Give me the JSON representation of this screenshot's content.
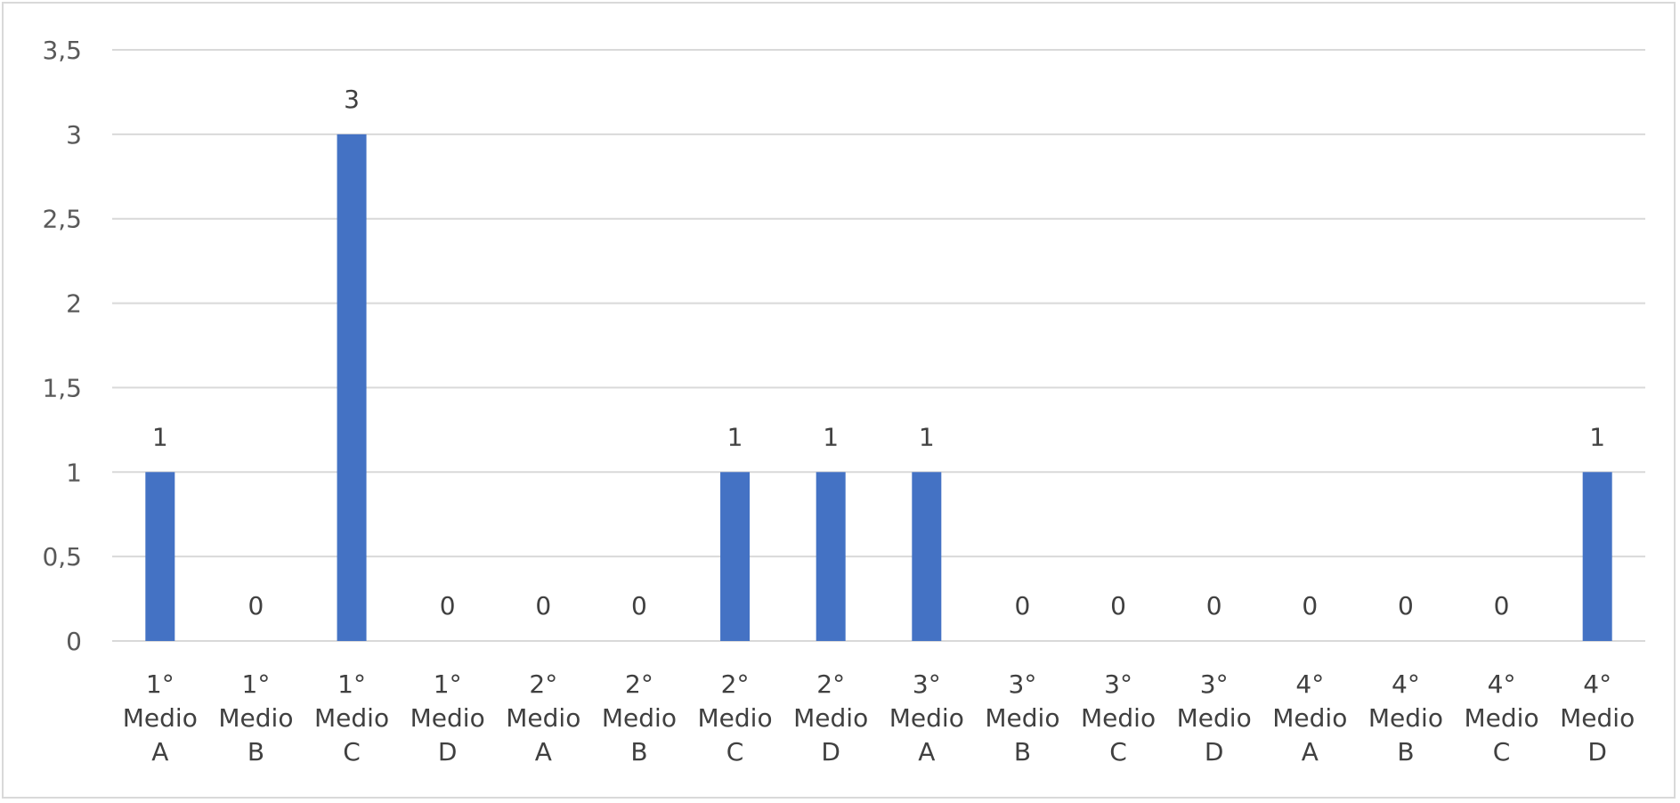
{
  "chart_data": {
    "type": "bar",
    "categories": [
      [
        "1°",
        "Medio",
        "A"
      ],
      [
        "1°",
        "Medio",
        "B"
      ],
      [
        "1°",
        "Medio",
        "C"
      ],
      [
        "1°",
        "Medio",
        "D"
      ],
      [
        "2°",
        "Medio",
        "A"
      ],
      [
        "2°",
        "Medio",
        "B"
      ],
      [
        "2°",
        "Medio",
        "C"
      ],
      [
        "2°",
        "Medio",
        "D"
      ],
      [
        "3°",
        "Medio",
        "A"
      ],
      [
        "3°",
        "Medio",
        "B"
      ],
      [
        "3°",
        "Medio",
        "C"
      ],
      [
        "3°",
        "Medio",
        "D"
      ],
      [
        "4°",
        "Medio",
        "A"
      ],
      [
        "4°",
        "Medio",
        "B"
      ],
      [
        "4°",
        "Medio",
        "C"
      ],
      [
        "4°",
        "Medio",
        "D"
      ]
    ],
    "values": [
      1,
      0,
      3,
      0,
      0,
      0,
      1,
      1,
      1,
      0,
      0,
      0,
      0,
      0,
      0,
      1
    ],
    "data_labels": [
      "1",
      "0",
      "3",
      "0",
      "0",
      "0",
      "1",
      "1",
      "1",
      "0",
      "0",
      "0",
      "0",
      "0",
      "0",
      "1"
    ],
    "ylim": [
      0,
      3.5
    ],
    "y_ticks": [
      0,
      0.5,
      1,
      1.5,
      2,
      2.5,
      3,
      3.5
    ],
    "y_tick_labels": [
      "0",
      "0,5",
      "1",
      "1,5",
      "2",
      "2,5",
      "3",
      "3,5"
    ],
    "grid": true,
    "bar_color": "#4472c4",
    "grid_color": "#d9d9d9"
  }
}
